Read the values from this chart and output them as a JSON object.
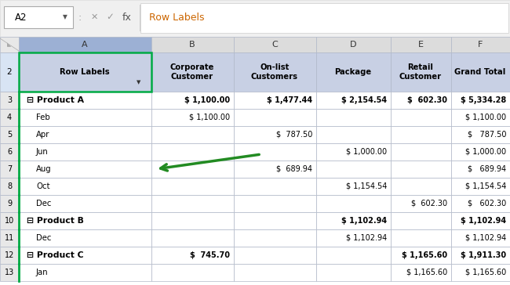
{
  "formula_bar_cell": "A2",
  "formula_bar_content": "Row Labels",
  "col_header_labels": [
    "A",
    "B",
    "C",
    "D",
    "E",
    "F"
  ],
  "headers": [
    "Row Labels",
    "Corporate\nCustomer",
    "On-list\nCustomers",
    "Package",
    "Retail\nCustomer",
    "Grand Total"
  ],
  "rows": [
    {
      "label": "⊟ Product A",
      "bold": true,
      "B": "$ 1,100.00",
      "C": "$ 1,477.44",
      "D": "$ 2,154.54",
      "E": "$  602.30",
      "F": "$ 5,334.28"
    },
    {
      "label": "Feb",
      "bold": false,
      "B": "$ 1,100.00",
      "C": "",
      "D": "",
      "E": "",
      "F": "$ 1,100.00"
    },
    {
      "label": "Apr",
      "bold": false,
      "B": "",
      "C": "$  787.50",
      "D": "",
      "E": "",
      "F": "$   787.50"
    },
    {
      "label": "Jun",
      "bold": false,
      "B": "",
      "C": "",
      "D": "$ 1,000.00",
      "E": "",
      "F": "$ 1,000.00"
    },
    {
      "label": "Aug",
      "bold": false,
      "B": "",
      "C": "$  689.94",
      "D": "",
      "E": "",
      "F": "$   689.94"
    },
    {
      "label": "Oct",
      "bold": false,
      "B": "",
      "C": "",
      "D": "$ 1,154.54",
      "E": "",
      "F": "$ 1,154.54"
    },
    {
      "label": "Dec",
      "bold": false,
      "B": "",
      "C": "",
      "D": "",
      "E": "$  602.30",
      "F": "$   602.30"
    },
    {
      "label": "⊟ Product B",
      "bold": true,
      "B": "",
      "C": "",
      "D": "$ 1,102.94",
      "E": "",
      "F": "$ 1,102.94"
    },
    {
      "label": "Dec",
      "bold": false,
      "B": "",
      "C": "",
      "D": "$ 1,102.94",
      "E": "",
      "F": "$ 1,102.94"
    },
    {
      "label": "⊟ Product C",
      "bold": true,
      "B": "$  745.70",
      "C": "",
      "D": "",
      "E": "$ 1,165.60",
      "F": "$ 1,911.30"
    },
    {
      "label": "Jan",
      "bold": false,
      "B": "",
      "C": "",
      "D": "",
      "E": "$ 1,165.60",
      "F": "$ 1,165.60"
    }
  ],
  "row_numbers": [
    2,
    3,
    4,
    5,
    6,
    7,
    8,
    9,
    10,
    11,
    12,
    13
  ],
  "arrow_color": "#228B22",
  "bg_light": "#F2F2F2",
  "bg_white": "#FFFFFF",
  "header_fill": "#C8D0E4",
  "col_a_fill": "#BCC8E0",
  "grid_color": "#B0B8C8",
  "green_border": "#00AA44",
  "text_dark": "#000000",
  "text_gray": "#888888",
  "formula_text_color": "#CC6600"
}
